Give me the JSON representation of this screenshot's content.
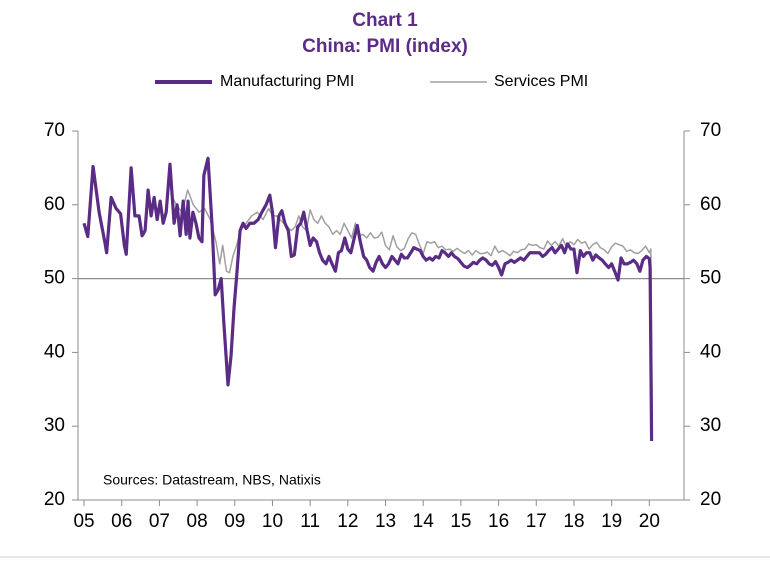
{
  "chart_data": {
    "type": "line",
    "title": "Chart 1",
    "subtitle": "China: PMI (index)",
    "source": "Sources:  Datastream,  NBS, Natixis",
    "xlim": [
      2004.84,
      2020.92
    ],
    "xticks": [
      {
        "value": 2005,
        "label": "05"
      },
      {
        "value": 2006,
        "label": "06"
      },
      {
        "value": 2007,
        "label": "07"
      },
      {
        "value": 2008,
        "label": "08"
      },
      {
        "value": 2009,
        "label": "09"
      },
      {
        "value": 2010,
        "label": "10"
      },
      {
        "value": 2011,
        "label": "11"
      },
      {
        "value": 2012,
        "label": "12"
      },
      {
        "value": 2013,
        "label": "13"
      },
      {
        "value": 2014,
        "label": "14"
      },
      {
        "value": 2015,
        "label": "15"
      },
      {
        "value": 2016,
        "label": "16"
      },
      {
        "value": 2017,
        "label": "17"
      },
      {
        "value": 2018,
        "label": "18"
      },
      {
        "value": 2019,
        "label": "19"
      },
      {
        "value": 2020,
        "label": "20"
      }
    ],
    "ylim": [
      20,
      70
    ],
    "yticks": [
      20,
      30,
      40,
      50,
      60,
      70
    ],
    "y2lim": [
      20,
      70
    ],
    "y2ticks": [
      20,
      30,
      40,
      50,
      60,
      70
    ],
    "reference_line": 50,
    "legend": "top",
    "series": [
      {
        "name": "Manufacturing PMI",
        "color": "#5b2c86",
        "x": [
          2005.0,
          2005.1,
          2005.24,
          2005.4,
          2005.55,
          2005.6,
          2005.72,
          2005.85,
          2005.97,
          2006.07,
          2006.12,
          2006.25,
          2006.35,
          2006.46,
          2006.54,
          2006.62,
          2006.7,
          2006.78,
          2006.86,
          2006.94,
          2007.02,
          2007.1,
          2007.18,
          2007.28,
          2007.39,
          2007.47,
          2007.55,
          2007.63,
          2007.71,
          2007.76,
          2007.81,
          2007.89,
          2007.97,
          2008.05,
          2008.13,
          2008.18,
          2008.29,
          2008.4,
          2008.48,
          2008.56,
          2008.64,
          2008.71,
          2008.82,
          2008.9,
          2008.98,
          2009.06,
          2009.14,
          2009.22,
          2009.3,
          2009.4,
          2009.51,
          2009.62,
          2009.72,
          2009.83,
          2009.93,
          2010.0,
          2010.08,
          2010.17,
          2010.25,
          2010.33,
          2010.42,
          2010.5,
          2010.58,
          2010.67,
          2010.75,
          2010.83,
          2010.92,
          2011.0,
          2011.08,
          2011.17,
          2011.25,
          2011.33,
          2011.42,
          2011.5,
          2011.58,
          2011.67,
          2011.75,
          2011.83,
          2011.92,
          2012.0,
          2012.08,
          2012.17,
          2012.25,
          2012.33,
          2012.42,
          2012.5,
          2012.58,
          2012.67,
          2012.75,
          2012.83,
          2012.92,
          2013.0,
          2013.08,
          2013.17,
          2013.25,
          2013.33,
          2013.42,
          2013.5,
          2013.58,
          2013.67,
          2013.75,
          2013.83,
          2013.92,
          2014.0,
          2014.08,
          2014.17,
          2014.25,
          2014.33,
          2014.42,
          2014.5,
          2014.58,
          2014.67,
          2014.75,
          2014.83,
          2014.92,
          2015.0,
          2015.08,
          2015.17,
          2015.25,
          2015.33,
          2015.42,
          2015.5,
          2015.58,
          2015.67,
          2015.75,
          2015.83,
          2015.92,
          2016.0,
          2016.08,
          2016.17,
          2016.25,
          2016.33,
          2016.42,
          2016.5,
          2016.58,
          2016.67,
          2016.75,
          2016.83,
          2016.92,
          2017.0,
          2017.08,
          2017.17,
          2017.25,
          2017.33,
          2017.42,
          2017.5,
          2017.58,
          2017.67,
          2017.75,
          2017.83,
          2017.92,
          2018.0,
          2018.08,
          2018.17,
          2018.25,
          2018.33,
          2018.42,
          2018.5,
          2018.58,
          2018.67,
          2018.75,
          2018.83,
          2018.92,
          2019.0,
          2019.08,
          2019.17,
          2019.25,
          2019.33,
          2019.42,
          2019.5,
          2019.58,
          2019.67,
          2019.75,
          2019.83,
          2019.92,
          2020.0,
          2020.02,
          2020.06
        ],
        "values": [
          57.5,
          55.7,
          65.2,
          59,
          55,
          53.5,
          61,
          59.5,
          58.8,
          54.5,
          53.3,
          65,
          58.5,
          58.5,
          55.8,
          56.5,
          62,
          58.5,
          61,
          58,
          60.5,
          57.5,
          59,
          65.5,
          57.5,
          60,
          55.8,
          60.5,
          56,
          60.5,
          55.5,
          59,
          57.5,
          55.5,
          55,
          64,
          66.3,
          57,
          47.8,
          48.5,
          50,
          44,
          35.6,
          39.5,
          46,
          51,
          56.5,
          57.5,
          56.8,
          57.5,
          57.5,
          58,
          59,
          60,
          61.3,
          59,
          54.2,
          58.5,
          59.2,
          57.5,
          56.5,
          53,
          53.2,
          57,
          57.5,
          59,
          56.5,
          54.5,
          55.5,
          55,
          53.5,
          52.5,
          52,
          53,
          52,
          51,
          53.5,
          53.8,
          55.5,
          54,
          53.5,
          55.5,
          57.2,
          55,
          53,
          52.5,
          51.5,
          51,
          52.2,
          53,
          52,
          51.5,
          52,
          53,
          52.5,
          52,
          53.3,
          52.8,
          52.8,
          53.5,
          54.2,
          54,
          53.8,
          53,
          52.5,
          52.8,
          52.5,
          53,
          52.8,
          53.8,
          53.5,
          53,
          53.5,
          53,
          52.7,
          52.2,
          51.7,
          51.5,
          51.8,
          52.2,
          52,
          52.5,
          52.8,
          52.5,
          52,
          51.8,
          52.3,
          51.5,
          50.5,
          52,
          52.2,
          52.5,
          52.2,
          52.5,
          52.8,
          52.5,
          53,
          53.5,
          53.5,
          53.5,
          53.5,
          53,
          53.3,
          53.8,
          54.2,
          53.5,
          54,
          54.5,
          53.5,
          54.7,
          54,
          54,
          50.8,
          53.8,
          53,
          53.5,
          53.5,
          52.5,
          53.2,
          52.8,
          52.5,
          52,
          51.5,
          52,
          51,
          49.8,
          52.8,
          52,
          52,
          52.2,
          52.5,
          52,
          51,
          52.5,
          53,
          52.7,
          51.5,
          28
        ]
      },
      {
        "name": "Services PMI",
        "color": "#a0a0a0",
        "x": [
          2007.3,
          2007.45,
          2007.6,
          2007.75,
          2007.9,
          2008.05,
          2008.2,
          2008.35,
          2008.5,
          2008.6,
          2008.68,
          2008.78,
          2008.86,
          2008.95,
          2009.05,
          2009.15,
          2009.3,
          2009.45,
          2009.6,
          2009.75,
          2009.9,
          2010.0,
          2010.1,
          2010.2,
          2010.3,
          2010.4,
          2010.5,
          2010.6,
          2010.7,
          2010.8,
          2010.9,
          2011.0,
          2011.1,
          2011.2,
          2011.3,
          2011.4,
          2011.5,
          2011.6,
          2011.7,
          2011.8,
          2011.9,
          2012.0,
          2012.1,
          2012.2,
          2012.3,
          2012.4,
          2012.5,
          2012.6,
          2012.7,
          2012.8,
          2012.9,
          2013.0,
          2013.1,
          2013.2,
          2013.3,
          2013.4,
          2013.5,
          2013.6,
          2013.7,
          2013.8,
          2013.9,
          2014.0,
          2014.1,
          2014.2,
          2014.3,
          2014.4,
          2014.5,
          2014.6,
          2014.7,
          2014.8,
          2014.9,
          2015.0,
          2015.1,
          2015.2,
          2015.3,
          2015.4,
          2015.5,
          2015.6,
          2015.7,
          2015.8,
          2015.9,
          2016.0,
          2016.1,
          2016.2,
          2016.3,
          2016.4,
          2016.5,
          2016.6,
          2016.7,
          2016.8,
          2016.9,
          2017.0,
          2017.1,
          2017.2,
          2017.3,
          2017.4,
          2017.5,
          2017.6,
          2017.7,
          2017.8,
          2017.9,
          2018.0,
          2018.1,
          2018.2,
          2018.3,
          2018.4,
          2018.5,
          2018.6,
          2018.7,
          2018.8,
          2018.9,
          2019.0,
          2019.1,
          2019.2,
          2019.3,
          2019.4,
          2019.5,
          2019.6,
          2019.7,
          2019.8,
          2019.9,
          2020.0,
          2020.04,
          2020.08
        ],
        "values": [
          61.5,
          60,
          59,
          62,
          60,
          59,
          59.5,
          58,
          55,
          52,
          54.5,
          51,
          50.8,
          53,
          54.5,
          56.5,
          57.5,
          58.5,
          59,
          58,
          59.5,
          58.5,
          58.5,
          58,
          57.5,
          57,
          56.5,
          57,
          58.5,
          57,
          56.5,
          59.3,
          58,
          57.5,
          58.5,
          57.5,
          57,
          56,
          56.5,
          56,
          57.5,
          56.5,
          55.5,
          57.5,
          55.8,
          56,
          55.5,
          56.2,
          55.5,
          55.6,
          56.3,
          54.5,
          53.9,
          55.8,
          54.3,
          53.8,
          54.1,
          55.4,
          56.2,
          56,
          54.6,
          53.4,
          55,
          54.8,
          55,
          54.2,
          54.4,
          53.9,
          54,
          53.7,
          54.1,
          53.7,
          53.4,
          53.8,
          53.2,
          53.8,
          53.4,
          53.4,
          53.6,
          53.1,
          54.4,
          53.5,
          53.8,
          53.5,
          53.1,
          53.7,
          53.5,
          53.9,
          54,
          54.7,
          54.5,
          54.6,
          54.2,
          54,
          55.1,
          54.5,
          55,
          54.4,
          55.4,
          54.3,
          55,
          54.6,
          55.3,
          54.8,
          55,
          54,
          54.6,
          54.9,
          54.2,
          53.9,
          53.4,
          54.3,
          54.8,
          54.6,
          54.4,
          53.7,
          53.9,
          53.5,
          53.4,
          53.8,
          54.4,
          53.5,
          54,
          29.6
        ]
      }
    ]
  }
}
